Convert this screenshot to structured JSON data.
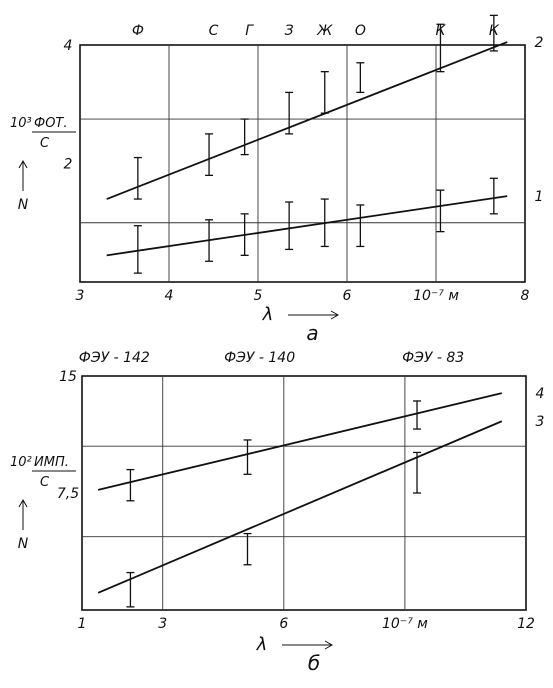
{
  "chart_data": [
    {
      "type": "line",
      "panel_label": "а",
      "xlim": [
        3,
        8
      ],
      "ylim": [
        0,
        4
      ],
      "x_ticks": [
        {
          "value": 3,
          "label": "3"
        },
        {
          "value": 4,
          "label": "4"
        },
        {
          "value": 5,
          "label": "5"
        },
        {
          "value": 6,
          "label": "6"
        },
        {
          "value": 7,
          "label": "10⁻⁷ м"
        },
        {
          "value": 8,
          "label": "8"
        }
      ],
      "y_ticks": [
        {
          "value": 2,
          "label": "2"
        },
        {
          "value": 4,
          "label": "4"
        }
      ],
      "xlabel": "λ",
      "ylabel": "N",
      "yunit_exponent": "10³",
      "yunit_numerator": "ФОТ.",
      "yunit_denominator": "С",
      "top_labels": [
        {
          "x": 3.65,
          "text": "Ф"
        },
        {
          "x": 4.5,
          "text": "С"
        },
        {
          "x": 4.9,
          "text": "Г"
        },
        {
          "x": 5.35,
          "text": "З"
        },
        {
          "x": 5.75,
          "text": "Ж"
        },
        {
          "x": 6.15,
          "text": "О"
        },
        {
          "x": 7.05,
          "text": "К"
        },
        {
          "x": 7.65,
          "text": "К"
        }
      ],
      "series": [
        {
          "name": "2",
          "x": [
            3.65,
            4.45,
            4.85,
            5.35,
            5.75,
            6.15,
            7.05,
            7.65
          ],
          "y": [
            1.75,
            2.15,
            2.45,
            2.85,
            3.2,
            3.45,
            3.95,
            4.2
          ],
          "err": [
            0.35,
            0.35,
            0.3,
            0.35,
            0.35,
            0.25,
            0.4,
            0.3
          ],
          "line": [
            [
              3.3,
              1.4
            ],
            [
              7.8,
              4.05
            ]
          ]
        },
        {
          "name": "1",
          "x": [
            3.65,
            4.45,
            4.85,
            5.35,
            5.75,
            6.15,
            7.05,
            7.65
          ],
          "y": [
            0.55,
            0.7,
            0.8,
            0.95,
            1.0,
            0.95,
            1.2,
            1.45
          ],
          "err": [
            0.4,
            0.35,
            0.35,
            0.4,
            0.4,
            0.35,
            0.35,
            0.3
          ],
          "line": [
            [
              3.3,
              0.45
            ],
            [
              7.8,
              1.45
            ]
          ]
        }
      ]
    },
    {
      "type": "line",
      "panel_label": "б",
      "xlim": [
        1,
        12
      ],
      "ylim": [
        0,
        15
      ],
      "x_ticks": [
        {
          "value": 1,
          "label": "1"
        },
        {
          "value": 3,
          "label": "3"
        },
        {
          "value": 6,
          "label": "6"
        },
        {
          "value": 9,
          "label": "10⁻⁷ м"
        },
        {
          "value": 12,
          "label": "12"
        }
      ],
      "y_ticks": [
        {
          "value": 7.5,
          "label": "7,5"
        },
        {
          "value": 15,
          "label": "15"
        }
      ],
      "xlabel": "λ",
      "ylabel": "N",
      "yunit_exponent": "10²",
      "yunit_numerator": "ИМП.",
      "yunit_denominator": "С",
      "top_labels": [
        {
          "x": 1.8,
          "text": "ФЭУ - 142"
        },
        {
          "x": 5.4,
          "text": "ФЭУ - 140"
        },
        {
          "x": 9.7,
          "text": "ФЭУ - 83"
        }
      ],
      "series": [
        {
          "name": "4",
          "x": [
            2.2,
            5.1,
            9.3
          ],
          "y": [
            8.0,
            9.8,
            12.5
          ],
          "err": [
            1.0,
            1.1,
            0.9
          ],
          "line": [
            [
              1.4,
              7.7
            ],
            [
              11.4,
              13.9
            ]
          ]
        },
        {
          "name": "3",
          "x": [
            2.2,
            5.1,
            9.3
          ],
          "y": [
            1.3,
            3.9,
            8.8
          ],
          "err": [
            1.1,
            1.0,
            1.3
          ],
          "line": [
            [
              1.4,
              1.1
            ],
            [
              11.4,
              12.1
            ]
          ]
        }
      ]
    }
  ]
}
